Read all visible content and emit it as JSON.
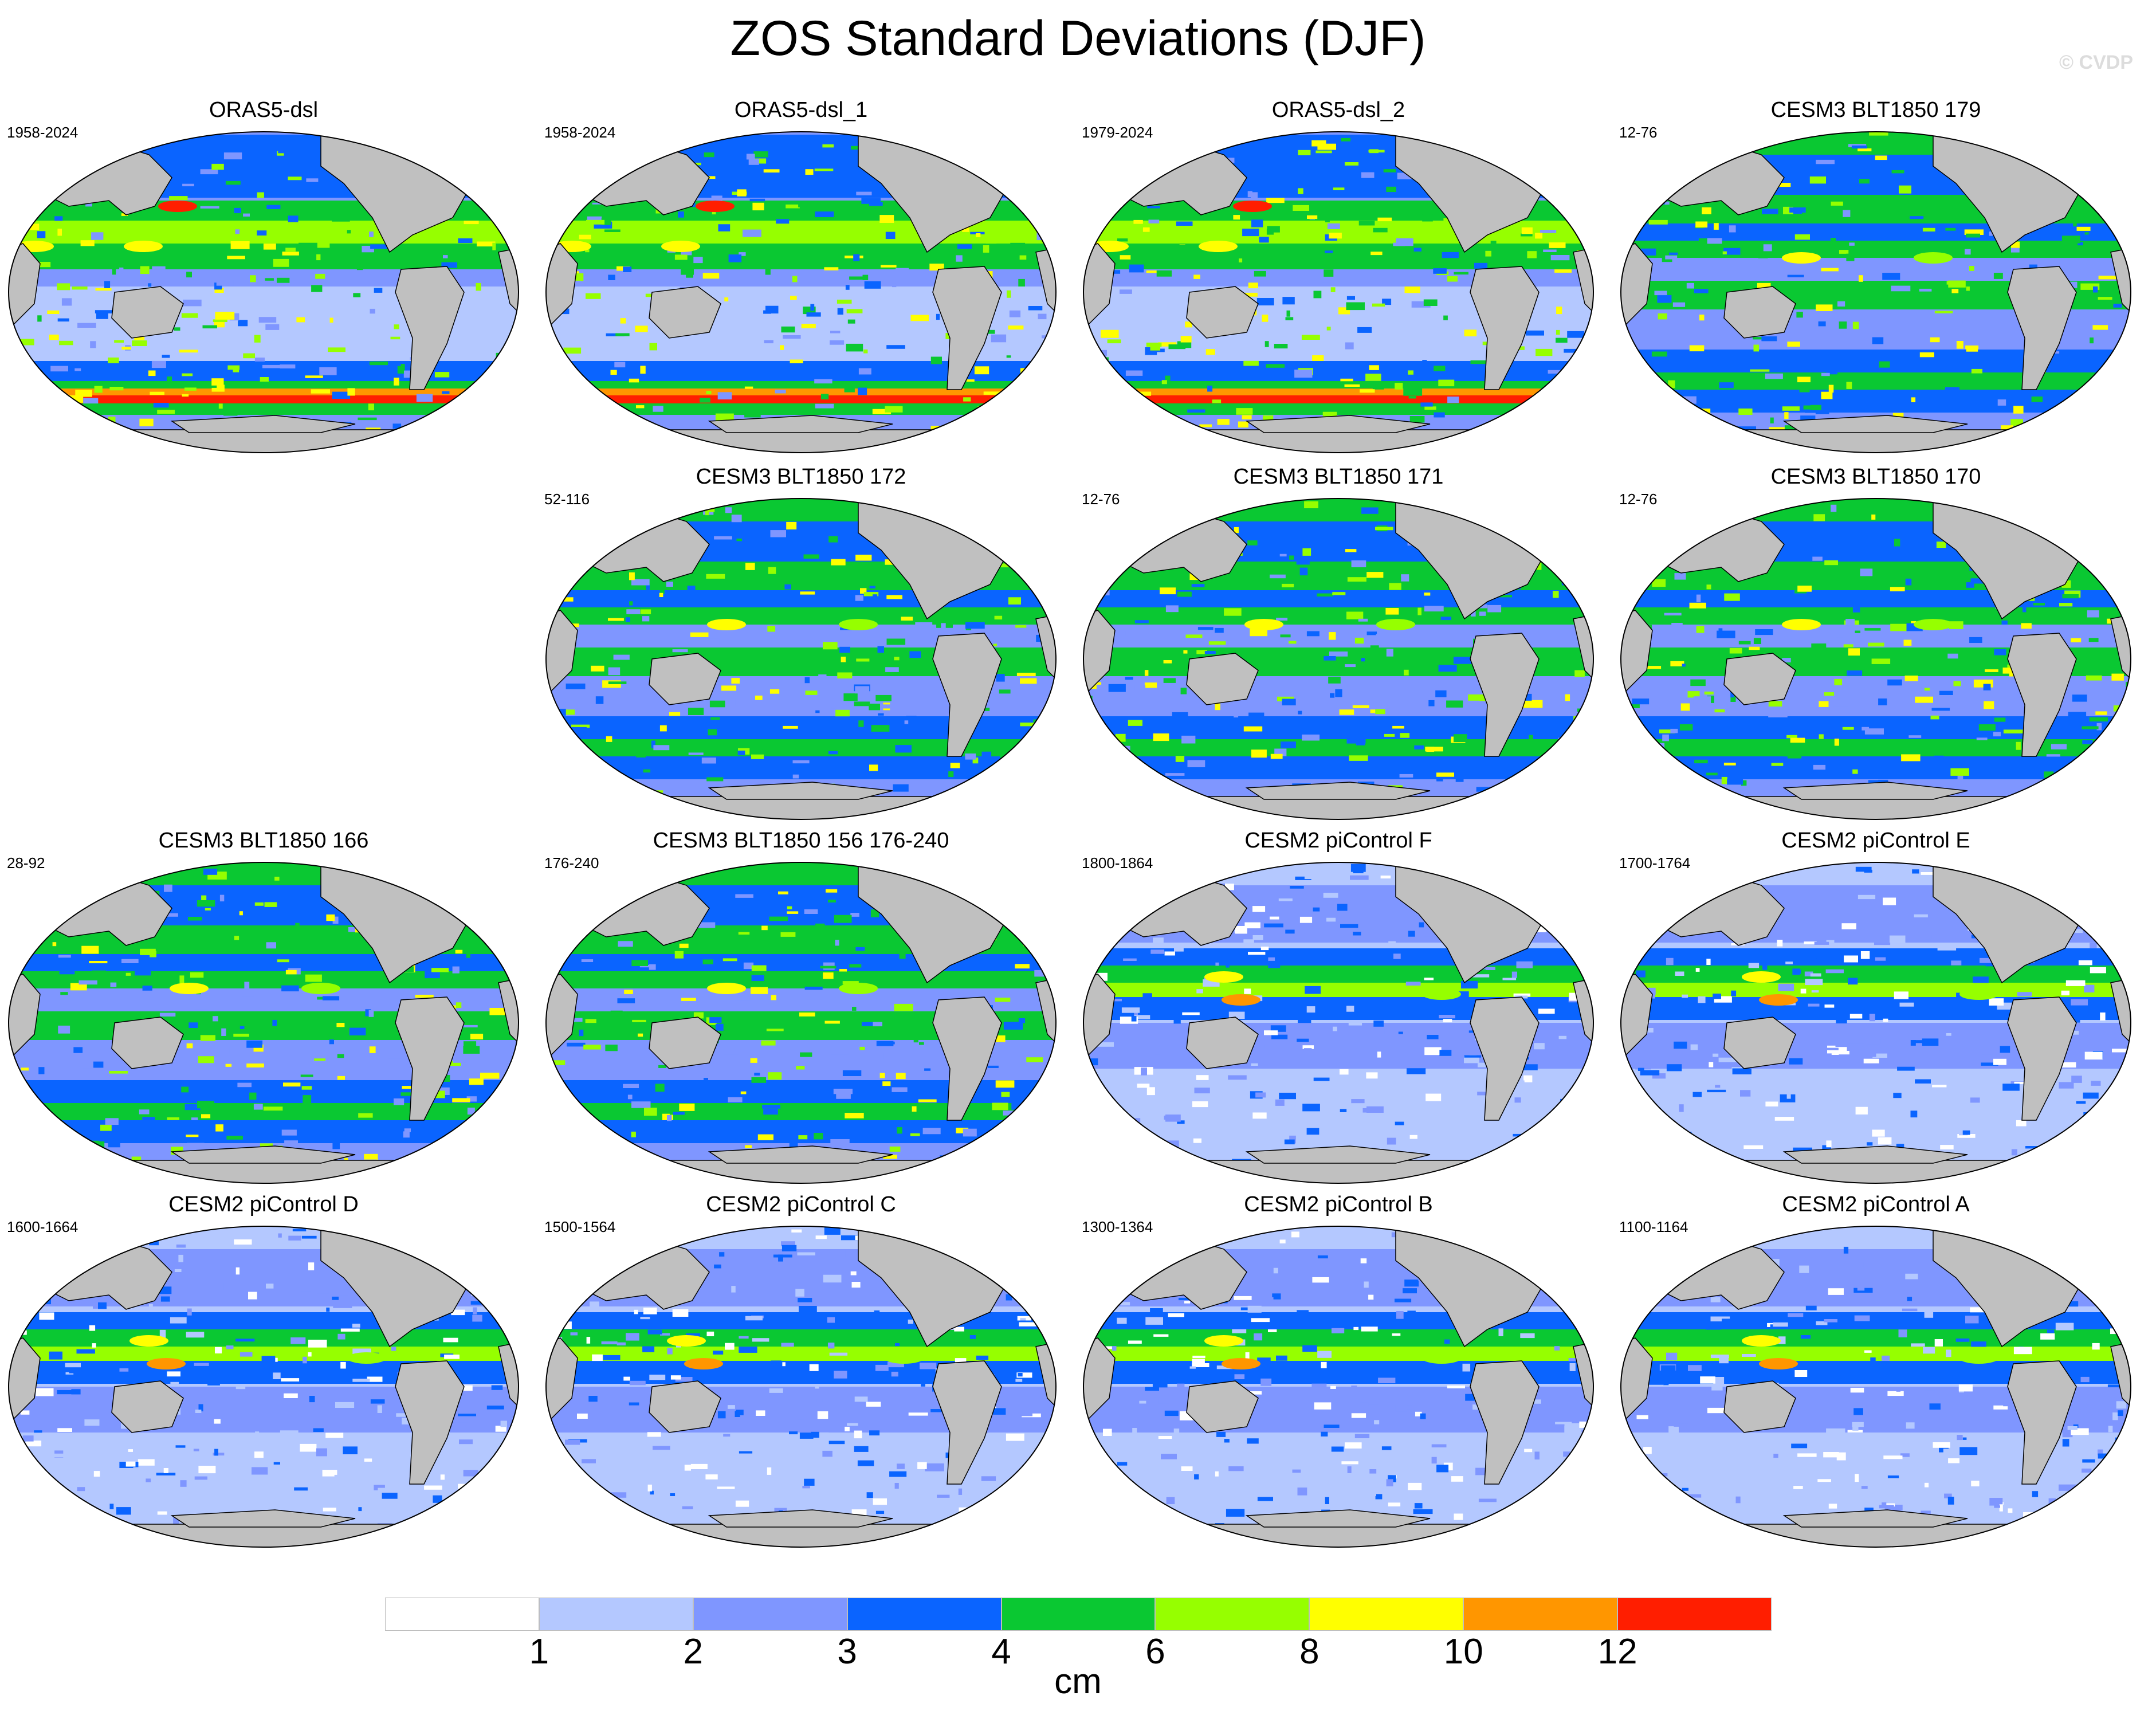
{
  "title": "ZOS Standard Deviations (DJF)",
  "watermark": "© CVDP",
  "panels": [
    {
      "title": "ORAS5-dsl",
      "years": "1958-2024",
      "variant": "obs"
    },
    {
      "title": "ORAS5-dsl_1",
      "years": "1958-2024",
      "variant": "obs"
    },
    {
      "title": "ORAS5-dsl_2",
      "years": "1979-2024",
      "variant": "obs"
    },
    {
      "title": "CESM3 BLT1850 179",
      "years": "12-76",
      "variant": "cesm3"
    },
    {
      "title": "CESM3 BLT1850 172",
      "years": "52-116",
      "variant": "cesm3"
    },
    {
      "title": "CESM3 BLT1850 171",
      "years": "12-76",
      "variant": "cesm3"
    },
    {
      "title": "CESM3 BLT1850 170",
      "years": "12-76",
      "variant": "cesm3"
    },
    {
      "title": "CESM3 BLT1850 166",
      "years": "28-92",
      "variant": "cesm3"
    },
    {
      "title": "CESM3 BLT1850 156 176-240",
      "years": "176-240",
      "variant": "cesm3"
    },
    {
      "title": "CESM2 piControl F",
      "years": "1800-1864",
      "variant": "cesm2"
    },
    {
      "title": "CESM2 piControl E",
      "years": "1700-1764",
      "variant": "cesm2"
    },
    {
      "title": "CESM2 piControl D",
      "years": "1600-1664",
      "variant": "cesm2"
    },
    {
      "title": "CESM2 piControl C",
      "years": "1500-1564",
      "variant": "cesm2"
    },
    {
      "title": "CESM2 piControl B",
      "years": "1300-1364",
      "variant": "cesm2"
    },
    {
      "title": "CESM2 piControl A",
      "years": "1100-1164",
      "variant": "cesm2"
    }
  ],
  "colorbar": {
    "units": "cm",
    "levels": [
      "1",
      "2",
      "3",
      "4",
      "6",
      "8",
      "10",
      "12"
    ],
    "colors": [
      "#ffffff",
      "#b4c8ff",
      "#7f96ff",
      "#0a64ff",
      "#0ac832",
      "#96ff00",
      "#ffff00",
      "#ff9600",
      "#ff1e00"
    ]
  },
  "map_colors": {
    "land": "#c0c0c0",
    "coast": "#000000"
  }
}
